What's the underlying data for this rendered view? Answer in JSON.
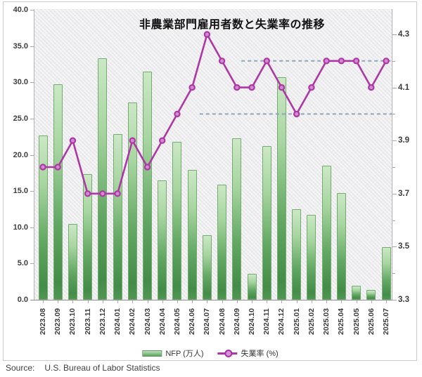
{
  "title": "非農業部門雇用者数と失業率の推移",
  "source": {
    "label": "Source:",
    "text": "U.S. Bureau of Labor Statistics"
  },
  "legend": {
    "bars_label": "NFP (万人)",
    "line_label": "失業率 (%)"
  },
  "colors": {
    "bar_fill_light": "#cbe8c5",
    "bar_fill_dark": "#448c49",
    "bar_border": "#74ab71",
    "line": "#ae37a6",
    "marker_fill": "#d08bd1",
    "reference_dashed": "#8fa6ba",
    "plot_background": "#ececee"
  },
  "chart_data": {
    "type": "bar+line combo",
    "title": "非農業部門雇用者数と失業率の推移",
    "categories": [
      "2023.08",
      "2023.09",
      "2023.10",
      "2023.11",
      "2023.12",
      "2024.01",
      "2024.02",
      "2024.03",
      "2024.04",
      "2024.05",
      "2024.06",
      "2024.07",
      "2024.08",
      "2024.09",
      "2024.10",
      "2024.11",
      "2024.12",
      "2025.01",
      "2025.02",
      "2025.03",
      "2025.04",
      "2025.05",
      "2025.06",
      "2025.07"
    ],
    "series": [
      {
        "name": "NFP (万人)",
        "type": "bar",
        "axis": "left",
        "values": [
          22.7,
          29.7,
          10.5,
          17.3,
          33.3,
          22.9,
          27.2,
          31.5,
          16.5,
          21.8,
          17.9,
          8.9,
          15.9,
          22.3,
          3.6,
          21.2,
          30.7,
          12.5,
          11.7,
          18.5,
          14.7,
          1.9,
          1.4,
          7.3
        ]
      },
      {
        "name": "失業率 (%)",
        "type": "line",
        "axis": "right",
        "values": [
          3.8,
          3.8,
          3.9,
          3.7,
          3.7,
          3.7,
          3.9,
          3.8,
          3.9,
          4.0,
          4.1,
          4.3,
          4.2,
          4.1,
          4.1,
          4.2,
          4.1,
          4.0,
          4.1,
          4.2,
          4.2,
          4.2,
          4.1,
          4.2
        ]
      }
    ],
    "left_axis": {
      "min": 0,
      "max": 40,
      "tick_step": 5,
      "tick_labels": [
        "0.0",
        "5.0",
        "10.0",
        "15.0",
        "20.0",
        "25.0",
        "30.0",
        "35.0",
        "40.0"
      ]
    },
    "right_axis": {
      "min": 3.3,
      "max": 4.3,
      "minor_step": 0.1,
      "tick_labels": [
        "3.3",
        "3.5",
        "3.7",
        "3.9",
        "4.1",
        "4.3"
      ]
    },
    "reference_lines": [
      {
        "value": 4.2,
        "start_index": 13.3
      },
      {
        "value": 4.0,
        "start_index": 10.5
      }
    ],
    "grid": "off",
    "legend_position": "bottom-center"
  }
}
